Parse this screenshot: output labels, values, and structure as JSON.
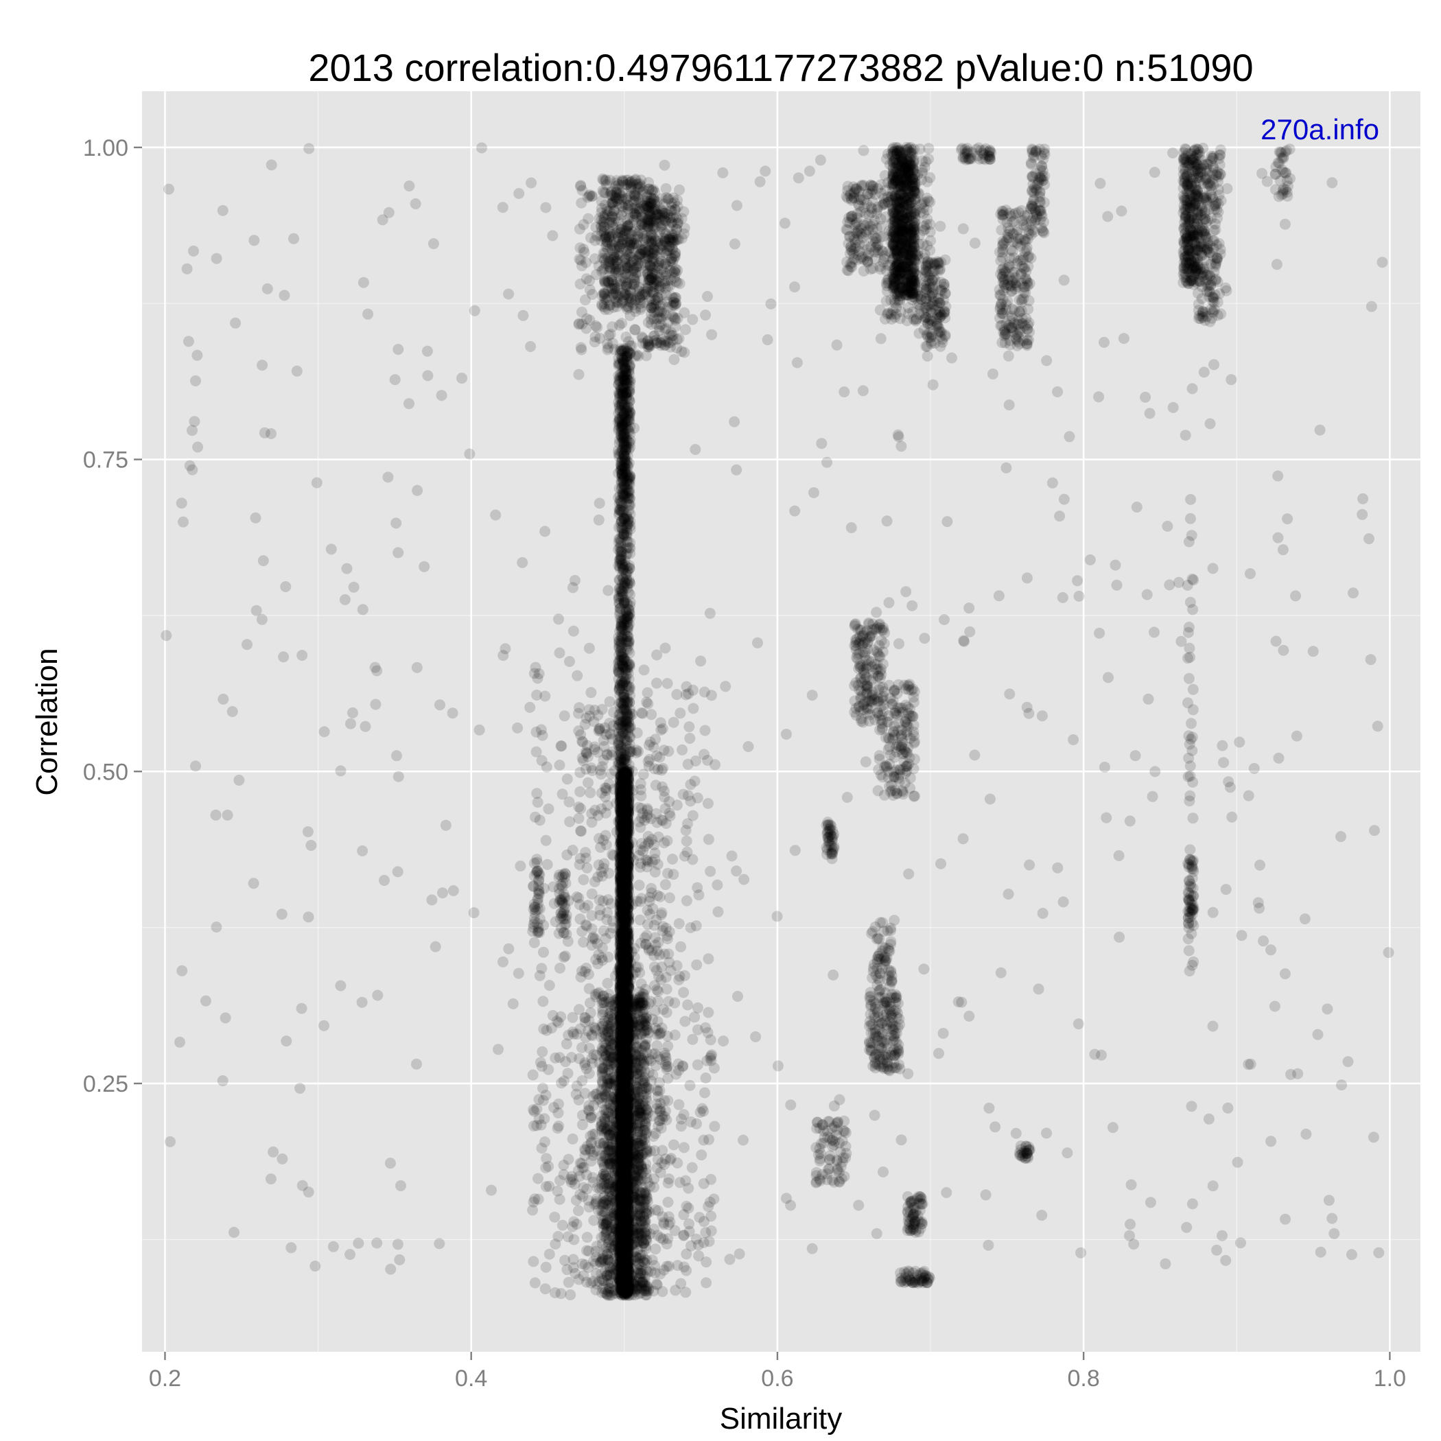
{
  "chart_data": {
    "type": "scatter",
    "title": "2013 correlation:0.497961177273882 pValue:0 n:51090",
    "xlabel": "Similarity",
    "ylabel": "Correlation",
    "watermark": "270a.info",
    "xlim": [
      0.185,
      1.02
    ],
    "ylim": [
      0.035,
      1.045
    ],
    "x_ticks": [
      0.2,
      0.4,
      0.6,
      0.8,
      1.0
    ],
    "x_tick_labels": [
      "0.2",
      "0.4",
      "0.6",
      "0.8",
      "1.0"
    ],
    "y_ticks": [
      0.25,
      0.5,
      0.75,
      1.0
    ],
    "y_tick_labels": [
      "0.25",
      "0.50",
      "0.75",
      "1.00"
    ],
    "grid": true,
    "point_color": "#000000",
    "point_alpha": 0.15,
    "panel_background": "#e5e5e5",
    "grid_color": "#ffffff",
    "watermark_color": "#0000cc",
    "clusters": [
      {
        "x": [
          0.497,
          0.503
        ],
        "y": [
          0.08,
          0.5
        ],
        "n": 3200
      },
      {
        "x": [
          0.496,
          0.504
        ],
        "y": [
          0.5,
          0.84
        ],
        "n": 700
      },
      {
        "x": [
          0.498,
          0.502
        ],
        "y": [
          0.72,
          0.84
        ],
        "n": 120
      },
      {
        "x": [
          0.485,
          0.515
        ],
        "y": [
          0.08,
          0.32
        ],
        "n": 1100
      },
      {
        "x": [
          0.47,
          0.53
        ],
        "y": [
          0.08,
          0.55
        ],
        "n": 600
      },
      {
        "x": [
          0.44,
          0.56
        ],
        "y": [
          0.08,
          0.3
        ],
        "n": 300
      },
      {
        "x": [
          0.44,
          0.56
        ],
        "y": [
          0.3,
          0.6
        ],
        "n": 200
      },
      {
        "x": [
          0.485,
          0.52
        ],
        "y": [
          0.87,
          0.975
        ],
        "n": 450
      },
      {
        "x": [
          0.515,
          0.535
        ],
        "y": [
          0.84,
          0.96
        ],
        "n": 250
      },
      {
        "x": [
          0.47,
          0.54
        ],
        "y": [
          0.83,
          0.97
        ],
        "n": 200
      },
      {
        "x": [
          0.44,
          0.445
        ],
        "y": [
          0.37,
          0.43
        ],
        "n": 40
      },
      {
        "x": [
          0.457,
          0.462
        ],
        "y": [
          0.37,
          0.42
        ],
        "n": 40
      },
      {
        "x": [
          0.675,
          0.69
        ],
        "y": [
          0.88,
          1.0
        ],
        "n": 600
      },
      {
        "x": [
          0.67,
          0.7
        ],
        "y": [
          0.86,
          1.0
        ],
        "n": 250
      },
      {
        "x": [
          0.695,
          0.71
        ],
        "y": [
          0.84,
          0.91
        ],
        "n": 120
      },
      {
        "x": [
          0.645,
          0.67
        ],
        "y": [
          0.9,
          0.97
        ],
        "n": 150
      },
      {
        "x": [
          0.745,
          0.765
        ],
        "y": [
          0.84,
          0.95
        ],
        "n": 200
      },
      {
        "x": [
          0.765,
          0.775
        ],
        "y": [
          0.93,
          1.0
        ],
        "n": 80
      },
      {
        "x": [
          0.72,
          0.74
        ],
        "y": [
          0.99,
          1.0
        ],
        "n": 40
      },
      {
        "x": [
          0.865,
          0.875
        ],
        "y": [
          0.89,
          1.0
        ],
        "n": 300
      },
      {
        "x": [
          0.875,
          0.89
        ],
        "y": [
          0.86,
          1.0
        ],
        "n": 200
      },
      {
        "x": [
          0.925,
          0.935
        ],
        "y": [
          0.96,
          1.0
        ],
        "n": 30
      },
      {
        "x": [
          0.65,
          0.67
        ],
        "y": [
          0.54,
          0.62
        ],
        "n": 150
      },
      {
        "x": [
          0.665,
          0.69
        ],
        "y": [
          0.48,
          0.57
        ],
        "n": 150
      },
      {
        "x": [
          0.66,
          0.68
        ],
        "y": [
          0.26,
          0.32
        ],
        "n": 150
      },
      {
        "x": [
          0.66,
          0.675
        ],
        "y": [
          0.32,
          0.38
        ],
        "n": 60
      },
      {
        "x": [
          0.632,
          0.637
        ],
        "y": [
          0.43,
          0.46
        ],
        "n": 40
      },
      {
        "x": [
          0.625,
          0.645
        ],
        "y": [
          0.17,
          0.22
        ],
        "n": 70
      },
      {
        "x": [
          0.685,
          0.695
        ],
        "y": [
          0.13,
          0.16
        ],
        "n": 60
      },
      {
        "x": [
          0.68,
          0.7
        ],
        "y": [
          0.09,
          0.1
        ],
        "n": 50
      },
      {
        "x": [
          0.758,
          0.765
        ],
        "y": [
          0.19,
          0.2
        ],
        "n": 25
      },
      {
        "x": [
          0.868,
          0.872
        ],
        "y": [
          0.37,
          0.43
        ],
        "n": 50
      },
      {
        "x": [
          0.868,
          0.872
        ],
        "y": [
          0.34,
          0.73
        ],
        "n": 40
      },
      {
        "x": [
          0.2,
          1.0
        ],
        "y": [
          0.1,
          1.0
        ],
        "n": 500
      }
    ]
  }
}
